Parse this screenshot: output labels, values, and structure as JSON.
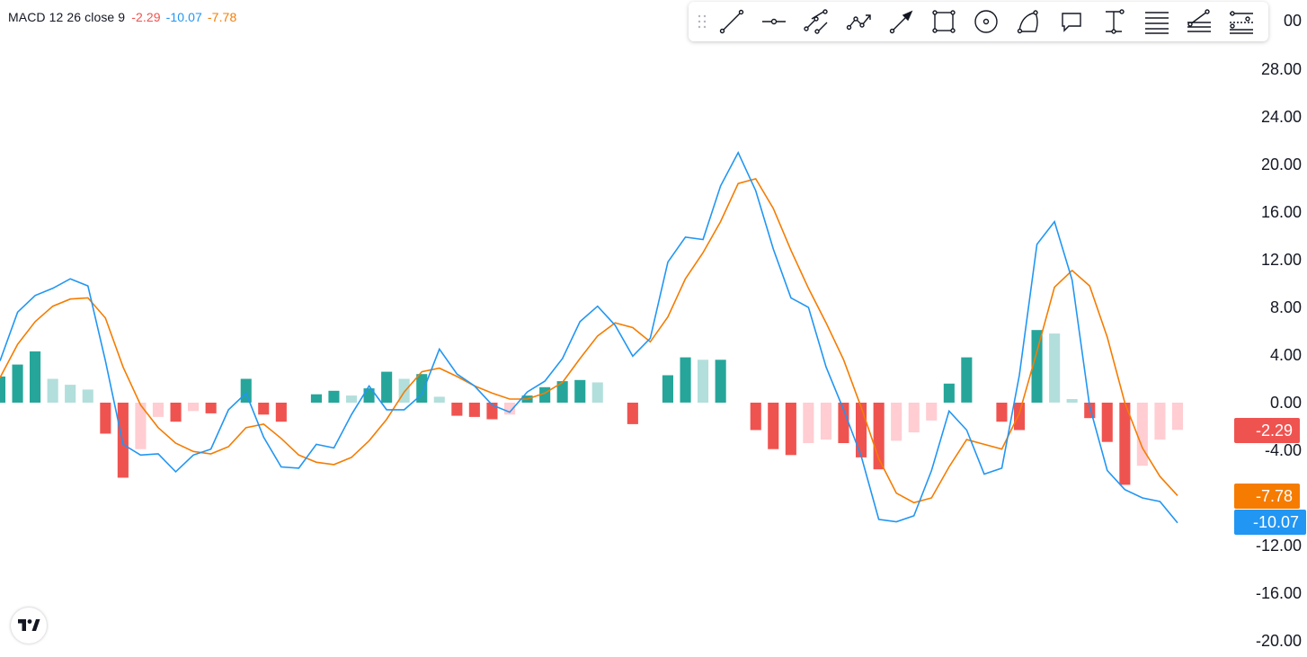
{
  "legend": {
    "label": "MACD 12 26 close 9",
    "histogram_value": "-2.29",
    "macd_value": "-10.07",
    "signal_value": "-7.78",
    "colors": {
      "histogram": "#ef5350",
      "macd": "#2196f3",
      "signal": "#f57c00"
    }
  },
  "toolbar": {
    "tools": [
      "trend-line-icon",
      "horizontal-ray-icon",
      "parallel-channel-icon",
      "polyline-icon",
      "arrow-icon",
      "rectangle-icon",
      "circle-icon",
      "arc-icon",
      "callout-icon",
      "price-range-icon",
      "fib-retracement-icon",
      "fib-fan-icon",
      "fib-extension-icon"
    ]
  },
  "chart_data": {
    "type": "line",
    "title": "MACD 12 26 close 9",
    "y_axis": {
      "ticks": [
        "28.00",
        "24.00",
        "20.00",
        "16.00",
        "12.00",
        "8.00",
        "4.00",
        "0.00",
        "-4.00",
        "-12.00",
        "-16.00",
        "-20.00"
      ],
      "partial_top_label": "00",
      "ylim": [
        -20,
        32
      ]
    },
    "last_values": {
      "histogram": "-2.29",
      "signal": "-7.78",
      "macd": "-10.07"
    },
    "grid": false,
    "series": [
      {
        "name": "MACD",
        "color": "#2196f3",
        "values": [
          3.5,
          7.6,
          9.0,
          9.6,
          10.4,
          9.8,
          3.5,
          -3.5,
          -4.4,
          -4.3,
          -5.8,
          -4.4,
          -3.9,
          -0.6,
          0.8,
          -2.9,
          -5.4,
          -5.5,
          -3.5,
          -3.8,
          -1.0,
          1.4,
          -0.6,
          -0.6,
          0.7,
          4.5,
          2.4,
          1.4,
          -0.2,
          -0.8,
          0.9,
          1.8,
          3.7,
          6.8,
          8.1,
          6.5,
          3.9,
          5.4,
          11.8,
          13.9,
          13.7,
          18.2,
          21.0,
          17.8,
          12.9,
          8.8,
          8.0,
          3.0,
          -0.6,
          -4.5,
          -9.8,
          -10.0,
          -9.5,
          -5.7,
          -0.7,
          -2.3,
          -6.0,
          -5.5,
          2.3,
          13.3,
          15.2,
          10.3,
          -0.3,
          -5.7,
          -7.3,
          -8.0,
          -8.3,
          -10.1
        ]
      },
      {
        "name": "Signal",
        "color": "#f57c00",
        "values": [
          2.1,
          4.9,
          6.8,
          8.1,
          8.7,
          8.8,
          7.1,
          3.0,
          -0.2,
          -2.1,
          -3.4,
          -4.1,
          -4.3,
          -3.7,
          -2.1,
          -1.8,
          -3.0,
          -4.4,
          -5.0,
          -5.2,
          -4.6,
          -3.2,
          -1.4,
          0.9,
          2.6,
          2.9,
          2.2,
          1.4,
          0.8,
          0.3,
          0.3,
          0.8,
          1.7,
          3.7,
          5.6,
          6.7,
          6.3,
          5.1,
          7.2,
          10.4,
          12.6,
          15.2,
          18.4,
          18.8,
          16.3,
          12.8,
          9.6,
          6.7,
          3.6,
          -0.4,
          -4.7,
          -7.6,
          -8.4,
          -8.0,
          -5.4,
          -3.1,
          -3.5,
          -3.9,
          -0.9,
          4.3,
          9.7,
          11.1,
          9.8,
          5.5,
          0.0,
          -3.8,
          -6.2,
          -7.8
        ]
      },
      {
        "name": "Histogram",
        "color": "#ef5350",
        "positive_colors": [
          "#26a69a",
          "#b2dfdb"
        ],
        "negative_colors": [
          "#ef5350",
          "#ffcdd2"
        ],
        "values": [
          2.2,
          3.2,
          4.3,
          2.0,
          1.5,
          1.1,
          -2.6,
          -6.3,
          -3.9,
          -1.2,
          -1.6,
          -0.7,
          -0.9,
          0,
          2.0,
          -1.0,
          -1.6,
          0,
          0.7,
          1.0,
          0.6,
          1.2,
          2.6,
          2.0,
          2.4,
          0.5,
          -1.1,
          -1.2,
          -1.4,
          -1.0,
          0.6,
          1.3,
          1.8,
          1.9,
          1.7,
          0,
          -1.8,
          0,
          2.3,
          3.8,
          3.6,
          3.6,
          0,
          -2.3,
          -3.9,
          -4.4,
          -3.4,
          -3.1,
          -3.4,
          -4.6,
          -5.6,
          -3.2,
          -2.5,
          -1.5,
          1.6,
          3.8,
          0,
          -1.6,
          -2.3,
          6.1,
          5.8,
          0.3,
          -1.3,
          -3.3,
          -6.9,
          -5.3,
          -3.1,
          -2.29
        ]
      }
    ]
  }
}
